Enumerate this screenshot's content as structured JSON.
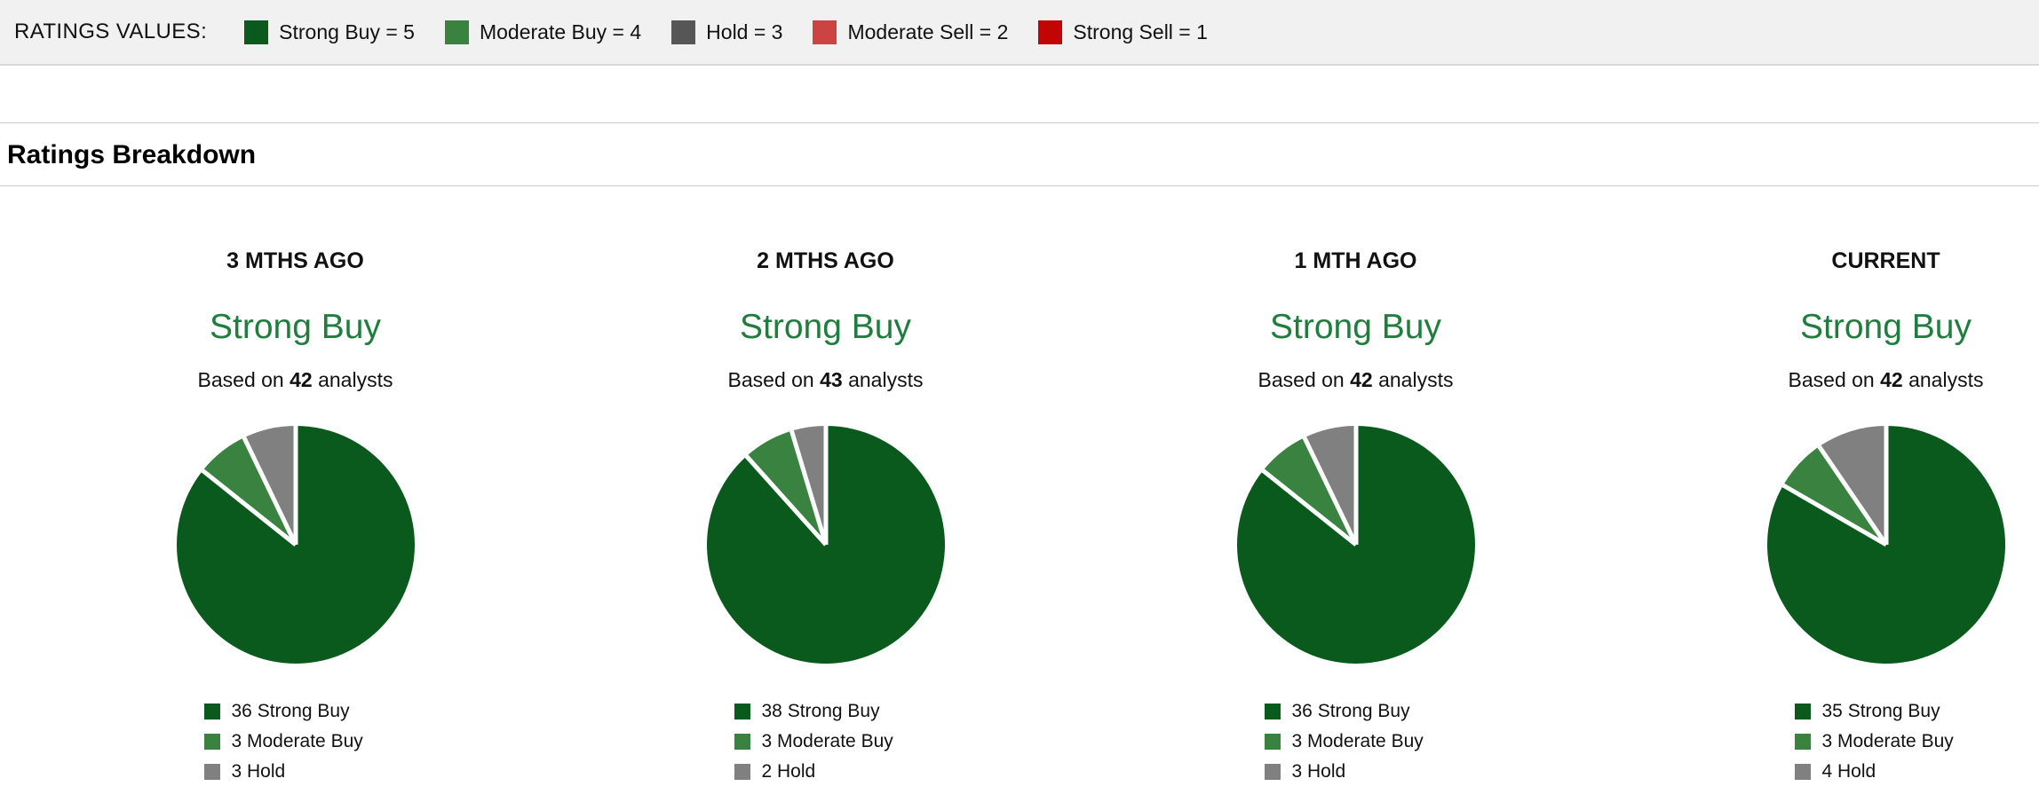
{
  "colors": {
    "strong_buy": "#0a5a1e",
    "moderate_buy": "#3a8240",
    "hold_pie": "#808080",
    "hold_bar": "#565656",
    "moderate_sell": "#cc4343",
    "strong_sell": "#c10505",
    "consensus_text": "#1f7e3d",
    "top_bar_bg": "#f1f1f2"
  },
  "ratings_values_bar": {
    "label": "RATINGS VALUES:",
    "items": [
      {
        "label": "Strong Buy = 5",
        "color": "#0a5a1e"
      },
      {
        "label": "Moderate Buy = 4",
        "color": "#3a8240"
      },
      {
        "label": "Hold = 3",
        "color": "#565656"
      },
      {
        "label": "Moderate Sell = 2",
        "color": "#cc4343"
      },
      {
        "label": "Strong Sell = 1",
        "color": "#c10505"
      }
    ]
  },
  "section": {
    "title": "Ratings Breakdown"
  },
  "chart_data": [
    {
      "type": "pie",
      "period": "3 MTHS AGO",
      "consensus": "Strong Buy",
      "based_on": {
        "prefix": "Based on",
        "count": "42",
        "suffix": "analysts"
      },
      "slices": [
        {
          "label": "Strong Buy",
          "value": 36,
          "color": "#0a5a1e"
        },
        {
          "label": "Moderate Buy",
          "value": 3,
          "color": "#3a8240"
        },
        {
          "label": "Hold",
          "value": 3,
          "color": "#808080"
        }
      ]
    },
    {
      "type": "pie",
      "period": "2 MTHS AGO",
      "consensus": "Strong Buy",
      "based_on": {
        "prefix": "Based on",
        "count": "43",
        "suffix": "analysts"
      },
      "slices": [
        {
          "label": "Strong Buy",
          "value": 38,
          "color": "#0a5a1e"
        },
        {
          "label": "Moderate Buy",
          "value": 3,
          "color": "#3a8240"
        },
        {
          "label": "Hold",
          "value": 2,
          "color": "#808080"
        }
      ]
    },
    {
      "type": "pie",
      "period": "1 MTH AGO",
      "consensus": "Strong Buy",
      "based_on": {
        "prefix": "Based on",
        "count": "42",
        "suffix": "analysts"
      },
      "slices": [
        {
          "label": "Strong Buy",
          "value": 36,
          "color": "#0a5a1e"
        },
        {
          "label": "Moderate Buy",
          "value": 3,
          "color": "#3a8240"
        },
        {
          "label": "Hold",
          "value": 3,
          "color": "#808080"
        }
      ]
    },
    {
      "type": "pie",
      "period": "CURRENT",
      "consensus": "Strong Buy",
      "based_on": {
        "prefix": "Based on",
        "count": "42",
        "suffix": "analysts"
      },
      "slices": [
        {
          "label": "Strong Buy",
          "value": 35,
          "color": "#0a5a1e"
        },
        {
          "label": "Moderate Buy",
          "value": 3,
          "color": "#3a8240"
        },
        {
          "label": "Hold",
          "value": 4,
          "color": "#808080"
        }
      ]
    }
  ]
}
